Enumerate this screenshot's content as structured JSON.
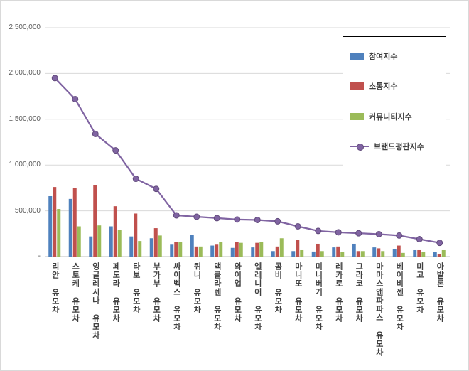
{
  "chart_data": {
    "type": "bar",
    "subtype": "combo-bar-line",
    "title": "",
    "xlabel": "",
    "ylabel": "",
    "ylim": [
      0,
      2500000
    ],
    "ytick_interval": 500000,
    "ytick_labels": [
      "-",
      "500,000",
      "1,000,000",
      "1,500,000",
      "2,000,000",
      "2,500,000"
    ],
    "grid": true,
    "legend_position": "top-right",
    "categories": [
      "리안 유모차",
      "스토케 유모차",
      "잉글레시나 유모차",
      "페도라 유모차",
      "타보 유모차",
      "부가부 유모차",
      "싸이벡스 유모차",
      "퀴니 유모차",
      "맥클라렌 유모차",
      "와이업 유모차",
      "엘레니어 유모차",
      "콤비 유모차",
      "마니또 유모차",
      "미니버기 유모차",
      "레카로 유모차",
      "그라코 유모차",
      "마마스앤파파스 유모차",
      "베이비젠 유모차",
      "미고 유모차",
      "아발론 유모차"
    ],
    "series": [
      {
        "name": "참여지수",
        "type": "bar",
        "color": "#4f81bd",
        "values": [
          660000,
          630000,
          220000,
          330000,
          220000,
          200000,
          130000,
          240000,
          120000,
          95000,
          100000,
          60000,
          60000,
          55000,
          100000,
          140000,
          100000,
          80000,
          70000,
          50000
        ]
      },
      {
        "name": "소통지수",
        "type": "bar",
        "color": "#c0504d",
        "values": [
          760000,
          750000,
          780000,
          550000,
          470000,
          310000,
          160000,
          110000,
          130000,
          160000,
          150000,
          110000,
          180000,
          140000,
          110000,
          60000,
          90000,
          120000,
          70000,
          30000
        ]
      },
      {
        "name": "커뮤니티지수",
        "type": "bar",
        "color": "#9bbb59",
        "values": [
          520000,
          330000,
          340000,
          290000,
          170000,
          230000,
          160000,
          110000,
          160000,
          150000,
          160000,
          200000,
          70000,
          60000,
          50000,
          60000,
          60000,
          40000,
          50000,
          70000
        ]
      },
      {
        "name": "브랜드평판지수",
        "type": "line",
        "color": "#8064a2",
        "marker_edge_color": "#60497a",
        "values": [
          1950000,
          1720000,
          1340000,
          1160000,
          850000,
          740000,
          450000,
          435000,
          420000,
          405000,
          400000,
          385000,
          330000,
          280000,
          265000,
          255000,
          245000,
          230000,
          190000,
          150000
        ]
      }
    ],
    "gridline_color": "#d9d9d9",
    "axis_line_color": "#bfbfbf"
  }
}
